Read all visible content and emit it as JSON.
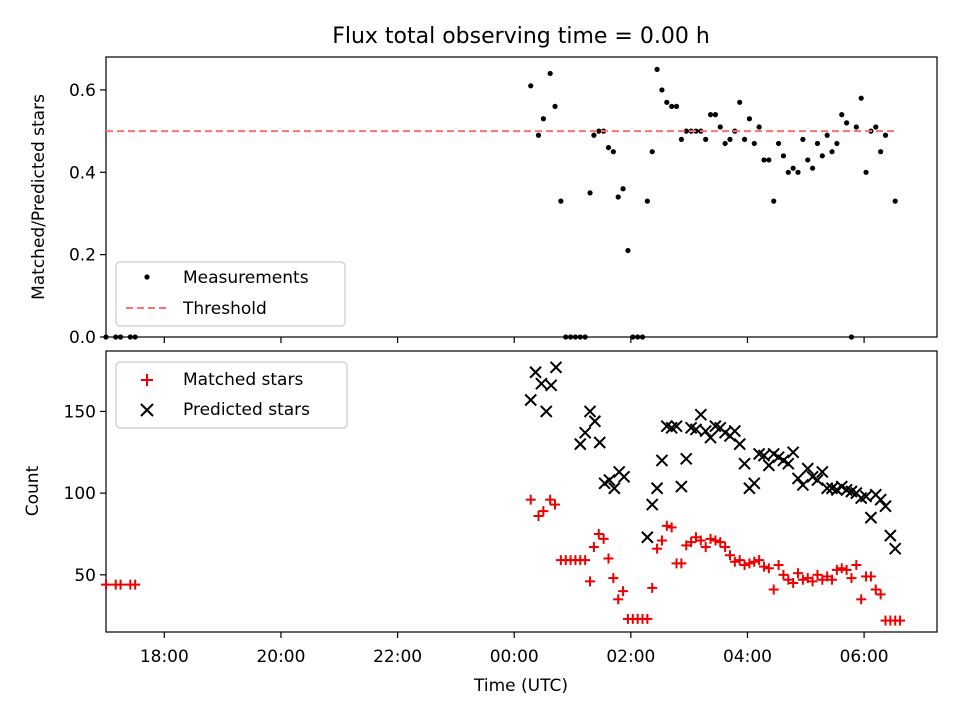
{
  "chart_data": {
    "title": "Flux total observing time = 0.00 h",
    "xlabel": "Time (UTC)",
    "x_ticks": [
      "18:00",
      "20:00",
      "22:00",
      "00:00",
      "02:00",
      "04:00",
      "06:00"
    ],
    "x_range_hours": [
      -7.0,
      7.25
    ],
    "panels": [
      {
        "type": "scatter",
        "ylabel": "Matched/Predicted stars",
        "ylim": [
          0,
          0.68
        ],
        "y_ticks": [
          "0.0",
          "0.2",
          "0.4",
          "0.6"
        ],
        "legend_position": "lower-left",
        "series": [
          {
            "name": "Measurements",
            "marker": "dot",
            "color": "#000000",
            "x": [
              "17:00",
              "17:10",
              "17:15",
              "17:25",
              "17:30",
              "00:17",
              "00:25",
              "00:30",
              "00:37",
              "00:42",
              "00:48",
              "00:53",
              "00:58",
              "01:03",
              "01:08",
              "01:13",
              "01:18",
              "01:22",
              "01:27",
              "01:32",
              "01:37",
              "01:42",
              "01:47",
              "01:52",
              "01:57",
              "02:02",
              "02:07",
              "02:12",
              "02:17",
              "02:22",
              "02:27",
              "02:32",
              "02:37",
              "02:42",
              "02:47",
              "02:52",
              "02:57",
              "03:02",
              "03:07",
              "03:12",
              "03:17",
              "03:22",
              "03:27",
              "03:32",
              "03:37",
              "03:42",
              "03:47",
              "03:52",
              "03:57",
              "04:02",
              "04:07",
              "04:12",
              "04:17",
              "04:22",
              "04:27",
              "04:32",
              "04:37",
              "04:42",
              "04:47",
              "04:52",
              "04:57",
              "05:02",
              "05:07",
              "05:12",
              "05:17",
              "05:22",
              "05:27",
              "05:32",
              "05:37",
              "05:42",
              "05:47",
              "05:52",
              "05:57",
              "06:02",
              "06:07",
              "06:12",
              "06:17",
              "06:22",
              "06:32"
            ],
            "y": [
              0.0,
              0.0,
              0.0,
              0.0,
              0.0,
              0.61,
              0.49,
              0.53,
              0.64,
              0.56,
              0.33,
              0.0,
              0.0,
              0.0,
              0.0,
              0.0,
              0.35,
              0.49,
              0.5,
              0.5,
              0.46,
              0.45,
              0.34,
              0.36,
              0.21,
              0.0,
              0.0,
              0.0,
              0.33,
              0.45,
              0.65,
              0.6,
              0.57,
              0.56,
              0.56,
              0.48,
              0.5,
              0.5,
              0.5,
              0.5,
              0.48,
              0.54,
              0.54,
              0.51,
              0.47,
              0.48,
              0.5,
              0.57,
              0.48,
              0.53,
              0.47,
              0.51,
              0.43,
              0.43,
              0.33,
              0.47,
              0.44,
              0.4,
              0.41,
              0.4,
              0.48,
              0.43,
              0.41,
              0.47,
              0.44,
              0.49,
              0.45,
              0.47,
              0.54,
              0.52,
              0.0,
              0.51,
              0.58,
              0.4,
              0.5,
              0.51,
              0.45,
              0.49,
              0.33
            ]
          },
          {
            "name": "Threshold",
            "style": "dashed",
            "color": "#ff7070",
            "x": [
              "17:00",
              "06:35"
            ],
            "y": [
              0.5,
              0.5
            ]
          }
        ]
      },
      {
        "type": "scatter",
        "ylabel": "Count",
        "ylim": [
          15,
          187
        ],
        "y_ticks": [
          "50",
          "100",
          "150"
        ],
        "legend_position": "upper-left",
        "series": [
          {
            "name": "Matched stars",
            "marker": "plus",
            "color": "#ee0000",
            "x": [
              "17:00",
              "17:10",
              "17:15",
              "17:25",
              "17:30",
              "00:17",
              "00:25",
              "00:30",
              "00:37",
              "00:42",
              "00:48",
              "00:53",
              "00:58",
              "01:03",
              "01:08",
              "01:13",
              "01:18",
              "01:22",
              "01:27",
              "01:32",
              "01:37",
              "01:42",
              "01:47",
              "01:52",
              "01:57",
              "02:02",
              "02:07",
              "02:12",
              "02:17",
              "02:22",
              "02:27",
              "02:32",
              "02:37",
              "02:42",
              "02:47",
              "02:52",
              "02:57",
              "03:02",
              "03:07",
              "03:12",
              "03:17",
              "03:22",
              "03:27",
              "03:32",
              "03:37",
              "03:42",
              "03:47",
              "03:52",
              "03:57",
              "04:02",
              "04:07",
              "04:12",
              "04:17",
              "04:22",
              "04:27",
              "04:32",
              "04:37",
              "04:42",
              "04:47",
              "04:52",
              "04:57",
              "05:02",
              "05:07",
              "05:12",
              "05:17",
              "05:22",
              "05:27",
              "05:32",
              "05:37",
              "05:42",
              "05:47",
              "05:52",
              "05:57",
              "06:02",
              "06:07",
              "06:12",
              "06:17",
              "06:22",
              "06:27",
              "06:32",
              "06:37"
            ],
            "y": [
              44,
              44,
              44,
              44,
              44,
              96,
              86,
              89,
              96,
              93,
              59,
              59,
              59,
              59,
              59,
              59,
              46,
              67,
              75,
              72,
              60,
              48,
              35,
              40,
              23,
              23,
              23,
              23,
              23,
              42,
              66,
              71,
              80,
              79,
              57,
              57,
              68,
              70,
              73,
              71,
              67,
              72,
              71,
              70,
              67,
              62,
              58,
              59,
              56,
              57,
              58,
              59,
              55,
              54,
              41,
              56,
              50,
              47,
              45,
              51,
              47,
              48,
              46,
              50,
              47,
              49,
              47,
              53,
              54,
              53,
              48,
              56,
              35,
              49,
              49,
              41,
              38,
              22,
              22,
              22,
              22
            ]
          },
          {
            "name": "Predicted stars",
            "marker": "x",
            "color": "#000000",
            "x": [
              "00:17",
              "00:22",
              "00:28",
              "00:33",
              "00:38",
              "00:43",
              "01:08",
              "01:13",
              "01:18",
              "01:23",
              "01:28",
              "01:33",
              "01:38",
              "01:43",
              "01:48",
              "01:53",
              "02:17",
              "02:22",
              "02:27",
              "02:32",
              "02:37",
              "02:42",
              "02:47",
              "02:52",
              "02:57",
              "03:02",
              "03:07",
              "03:12",
              "03:17",
              "03:22",
              "03:27",
              "03:32",
              "03:37",
              "03:42",
              "03:47",
              "03:52",
              "03:57",
              "04:02",
              "04:07",
              "04:12",
              "04:17",
              "04:22",
              "04:27",
              "04:32",
              "04:37",
              "04:42",
              "04:47",
              "04:52",
              "04:57",
              "05:02",
              "05:07",
              "05:12",
              "05:17",
              "05:22",
              "05:27",
              "05:32",
              "05:37",
              "05:42",
              "05:47",
              "05:52",
              "05:57",
              "06:02",
              "06:07",
              "06:12",
              "06:17",
              "06:22",
              "06:27",
              "06:32"
            ],
            "y": [
              157,
              174,
              167,
              150,
              166,
              177,
              130,
              137,
              150,
              144,
              131,
              106,
              108,
              103,
              113,
              110,
              73,
              93,
              103,
              120,
              141,
              140,
              141,
              104,
              121,
              140,
              139,
              148,
              138,
              134,
              141,
              140,
              137,
              135,
              138,
              130,
              118,
              103,
              106,
              124,
              123,
              117,
              124,
              122,
              120,
              118,
              125,
              109,
              105,
              115,
              110,
              108,
              113,
              103,
              103,
              102,
              104,
              102,
              101,
              100,
              97,
              98,
              85,
              99,
              96,
              92,
              74,
              66
            ]
          }
        ]
      }
    ]
  }
}
